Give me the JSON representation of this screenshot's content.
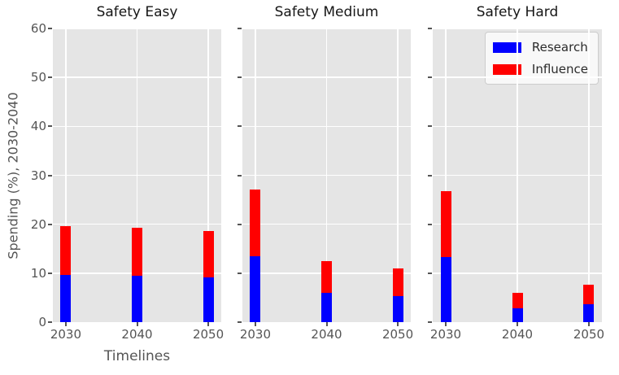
{
  "figure": {
    "ylabel": "Spending (%), 2030-2040",
    "xlabel": "Timelines",
    "colors": {
      "research": "#0000ff",
      "influence": "#ff0000",
      "plot_background": "#e5e5e5",
      "gridline": "#ffffff",
      "tick_text": "#555555",
      "title_text": "#161616",
      "figure_background": "#ffffff"
    }
  },
  "legend": {
    "position": "upper-right-of-third-subplot",
    "items": [
      {
        "label": "Research",
        "color": "#0000ff"
      },
      {
        "label": "Influence",
        "color": "#ff0000"
      }
    ]
  },
  "chart_data": [
    {
      "type": "bar",
      "stacked": true,
      "title": "Safety Easy",
      "categories": [
        "2030",
        "2040",
        "2050"
      ],
      "series": [
        {
          "name": "Research",
          "color": "#0000ff",
          "values": [
            9.7,
            9.5,
            9.1
          ]
        },
        {
          "name": "Influence",
          "color": "#ff0000",
          "values": [
            9.9,
            9.8,
            9.5
          ]
        }
      ],
      "xlabel": "Timelines",
      "ylabel": "Spending (%), 2030-2040",
      "ylim": [
        0,
        60
      ],
      "yticks": [
        0,
        10,
        20,
        30,
        40,
        50,
        60
      ],
      "grid": true
    },
    {
      "type": "bar",
      "stacked": true,
      "title": "Safety Medium",
      "categories": [
        "2030",
        "2040",
        "2050"
      ],
      "series": [
        {
          "name": "Research",
          "color": "#0000ff",
          "values": [
            13.4,
            6.0,
            5.3
          ]
        },
        {
          "name": "Influence",
          "color": "#ff0000",
          "values": [
            13.7,
            6.5,
            5.7
          ]
        }
      ],
      "ylim": [
        0,
        60
      ],
      "yticks": [
        0,
        10,
        20,
        30,
        40,
        50,
        60
      ],
      "grid": true
    },
    {
      "type": "bar",
      "stacked": true,
      "title": "Safety Hard",
      "categories": [
        "2030",
        "2040",
        "2050"
      ],
      "series": [
        {
          "name": "Research",
          "color": "#0000ff",
          "values": [
            13.3,
            2.8,
            3.6
          ]
        },
        {
          "name": "Influence",
          "color": "#ff0000",
          "values": [
            13.5,
            3.2,
            4.0
          ]
        }
      ],
      "ylim": [
        0,
        60
      ],
      "yticks": [
        0,
        10,
        20,
        30,
        40,
        50,
        60
      ],
      "grid": true,
      "has_legend": true
    }
  ]
}
